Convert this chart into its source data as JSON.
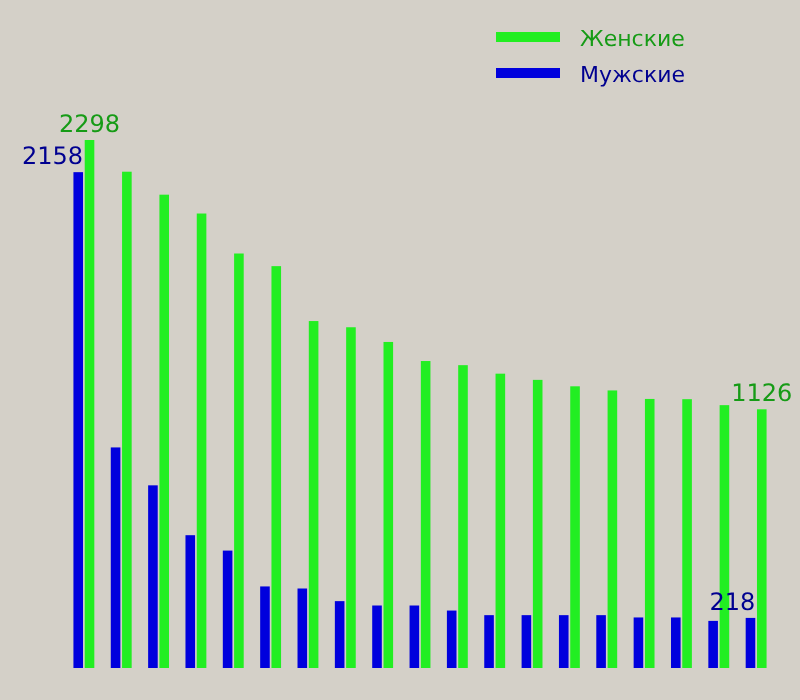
{
  "chart_data": {
    "type": "bar",
    "categories": [
      null,
      null,
      null,
      null,
      null,
      null,
      null,
      null,
      null,
      null,
      null,
      null,
      null,
      null,
      null,
      null,
      null,
      null,
      null
    ],
    "series": [
      {
        "name": "Мужские",
        "color": "#0000dd",
        "values": [
          2158,
          960,
          795,
          578,
          511,
          355,
          346,
          291,
          272,
          272,
          250,
          230,
          230,
          230,
          230,
          220,
          220,
          205,
          218
        ],
        "value_labels": [
          "2158",
          null,
          null,
          null,
          null,
          null,
          null,
          null,
          null,
          null,
          null,
          null,
          null,
          null,
          null,
          null,
          null,
          null,
          "218"
        ]
      },
      {
        "name": "Женские",
        "color": "#22ee22",
        "values": [
          2298,
          2160,
          2060,
          1978,
          1804,
          1749,
          1510,
          1483,
          1419,
          1336,
          1318,
          1281,
          1254,
          1226,
          1208,
          1171,
          1170,
          1144,
          1126
        ],
        "value_labels": [
          "2298",
          null,
          null,
          null,
          null,
          null,
          null,
          null,
          null,
          null,
          null,
          null,
          null,
          null,
          null,
          null,
          null,
          null,
          "1126"
        ]
      }
    ],
    "tick_labels": false,
    "legend": "top right"
  }
}
